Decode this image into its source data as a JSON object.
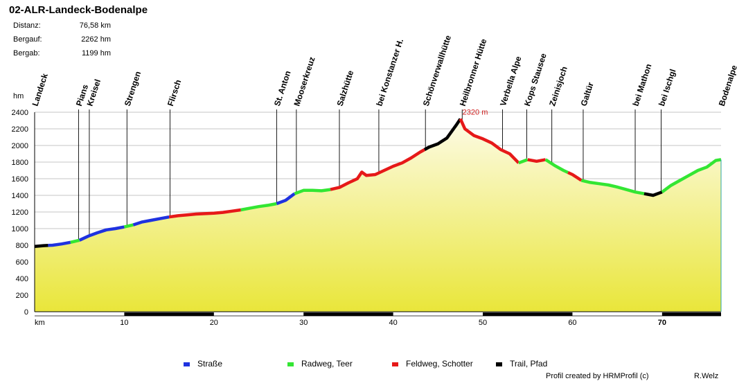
{
  "title": "02-ALR-Landeck-Bodenalpe",
  "stats": [
    {
      "label": "Distanz:",
      "value": "76,58 km"
    },
    {
      "label": "Bergauf:",
      "value": "2262 hm"
    },
    {
      "label": "Bergab:",
      "value": "1199 hm"
    }
  ],
  "colors": {
    "strasse": "#1f32e0",
    "radweg": "#33e633",
    "feldweg": "#e61919",
    "trail": "#000000",
    "fill_top": "#fdfbe6",
    "fill_bottom": "#e9e63a",
    "grid": "#b0b0b0",
    "peak_label": "#d02020"
  },
  "legend": [
    {
      "label": "Straße",
      "color_key": "strasse"
    },
    {
      "label": "Radweg, Teer",
      "color_key": "radweg"
    },
    {
      "label": "Feldweg, Schotter",
      "color_key": "feldweg"
    },
    {
      "label": "Trail, Pfad",
      "color_key": "trail"
    }
  ],
  "footer": {
    "credit": "Profil created by HRMProfil (c)",
    "author": "R.Welz"
  },
  "chart_data": {
    "type": "area",
    "title": "02-ALR-Landeck-Bodenalpe",
    "xlabel": "km",
    "ylabel": "hm",
    "xlim": [
      0,
      76.58
    ],
    "ylim": [
      0,
      2400
    ],
    "yticks": [
      0,
      200,
      400,
      600,
      800,
      1000,
      1200,
      1400,
      1600,
      1800,
      2000,
      2200,
      2400
    ],
    "xticks": [
      10,
      20,
      30,
      40,
      50,
      60,
      70
    ],
    "x_axis_label": "km",
    "bold_tick": 70,
    "grid": true,
    "max_label": "2320 m",
    "max_point": {
      "x": 47.5,
      "y": 2320
    },
    "profile": [
      [
        0,
        785
      ],
      [
        1,
        795
      ],
      [
        2,
        800
      ],
      [
        3,
        815
      ],
      [
        4,
        835
      ],
      [
        5,
        860
      ],
      [
        6,
        910
      ],
      [
        7,
        950
      ],
      [
        8,
        985
      ],
      [
        9,
        1000
      ],
      [
        10,
        1020
      ],
      [
        11,
        1045
      ],
      [
        12,
        1080
      ],
      [
        13,
        1100
      ],
      [
        14,
        1120
      ],
      [
        15,
        1140
      ],
      [
        16,
        1155
      ],
      [
        17,
        1165
      ],
      [
        18,
        1175
      ],
      [
        19,
        1180
      ],
      [
        20,
        1185
      ],
      [
        21,
        1195
      ],
      [
        22,
        1210
      ],
      [
        23,
        1225
      ],
      [
        24,
        1245
      ],
      [
        25,
        1265
      ],
      [
        26,
        1280
      ],
      [
        27,
        1300
      ],
      [
        28,
        1340
      ],
      [
        29,
        1420
      ],
      [
        30,
        1460
      ],
      [
        31,
        1460
      ],
      [
        32,
        1455
      ],
      [
        33,
        1470
      ],
      [
        34,
        1495
      ],
      [
        35,
        1550
      ],
      [
        36,
        1600
      ],
      [
        36.5,
        1680
      ],
      [
        37,
        1640
      ],
      [
        38,
        1650
      ],
      [
        39,
        1700
      ],
      [
        40,
        1750
      ],
      [
        41,
        1790
      ],
      [
        42,
        1850
      ],
      [
        43,
        1920
      ],
      [
        44,
        1980
      ],
      [
        45,
        2020
      ],
      [
        46,
        2090
      ],
      [
        47,
        2240
      ],
      [
        47.5,
        2320
      ],
      [
        48,
        2200
      ],
      [
        49,
        2120
      ],
      [
        50,
        2080
      ],
      [
        51,
        2030
      ],
      [
        52,
        1950
      ],
      [
        53,
        1900
      ],
      [
        54,
        1790
      ],
      [
        55,
        1830
      ],
      [
        56,
        1810
      ],
      [
        57,
        1830
      ],
      [
        58,
        1760
      ],
      [
        59,
        1700
      ],
      [
        60,
        1650
      ],
      [
        61,
        1580
      ],
      [
        62,
        1555
      ],
      [
        63,
        1540
      ],
      [
        64,
        1525
      ],
      [
        65,
        1500
      ],
      [
        66,
        1470
      ],
      [
        67,
        1440
      ],
      [
        68,
        1420
      ],
      [
        69,
        1400
      ],
      [
        70,
        1440
      ],
      [
        71,
        1520
      ],
      [
        72,
        1580
      ],
      [
        73,
        1640
      ],
      [
        74,
        1700
      ],
      [
        75,
        1740
      ],
      [
        76,
        1820
      ],
      [
        76.58,
        1830
      ]
    ],
    "segments": [
      {
        "type": "trail",
        "from": 0,
        "to": 1.5
      },
      {
        "type": "strasse",
        "from": 1.5,
        "to": 4
      },
      {
        "type": "radweg",
        "from": 4,
        "to": 5
      },
      {
        "type": "strasse",
        "from": 5,
        "to": 10
      },
      {
        "type": "radweg",
        "from": 10,
        "to": 11
      },
      {
        "type": "strasse",
        "from": 11,
        "to": 15
      },
      {
        "type": "feldweg",
        "from": 15,
        "to": 23
      },
      {
        "type": "radweg",
        "from": 23,
        "to": 27
      },
      {
        "type": "strasse",
        "from": 27,
        "to": 29
      },
      {
        "type": "radweg",
        "from": 29,
        "to": 33
      },
      {
        "type": "feldweg",
        "from": 33,
        "to": 43.5
      },
      {
        "type": "trail",
        "from": 43.5,
        "to": 47.5
      },
      {
        "type": "feldweg",
        "from": 47.5,
        "to": 54
      },
      {
        "type": "radweg",
        "from": 54,
        "to": 55
      },
      {
        "type": "feldweg",
        "from": 55,
        "to": 57
      },
      {
        "type": "radweg",
        "from": 57,
        "to": 59.5
      },
      {
        "type": "feldweg",
        "from": 59.5,
        "to": 61
      },
      {
        "type": "radweg",
        "from": 61,
        "to": 68
      },
      {
        "type": "trail",
        "from": 68,
        "to": 70
      },
      {
        "type": "radweg",
        "from": 70,
        "to": 76.58
      }
    ],
    "waypoints": [
      {
        "label": "Landeck",
        "km": 0
      },
      {
        "label": "Pians",
        "km": 4.9
      },
      {
        "label": "Kreisel",
        "km": 6.1
      },
      {
        "label": "Strengen",
        "km": 10.3
      },
      {
        "label": "Flirsch",
        "km": 15.1
      },
      {
        "label": "St. Anton",
        "km": 27.0
      },
      {
        "label": "Mooserkreuz",
        "km": 29.2
      },
      {
        "label": "Salzhütte",
        "km": 34.0
      },
      {
        "label": "bei Konstanzer H.",
        "km": 38.4
      },
      {
        "label": "Schönverwallhütte",
        "km": 43.6
      },
      {
        "label": "Heilbronner Hütte",
        "km": 47.7
      },
      {
        "label": "Verbella Alpe",
        "km": 52.2
      },
      {
        "label": "Kops Stausee",
        "km": 54.9
      },
      {
        "label": "Zeinisjoch",
        "km": 57.7
      },
      {
        "label": "Galtür",
        "km": 61.2
      },
      {
        "label": "bei Mathon",
        "km": 67.0
      },
      {
        "label": "bei Ischgl",
        "km": 69.9
      },
      {
        "label": "Bodenalpe",
        "km": 76.6
      }
    ]
  }
}
